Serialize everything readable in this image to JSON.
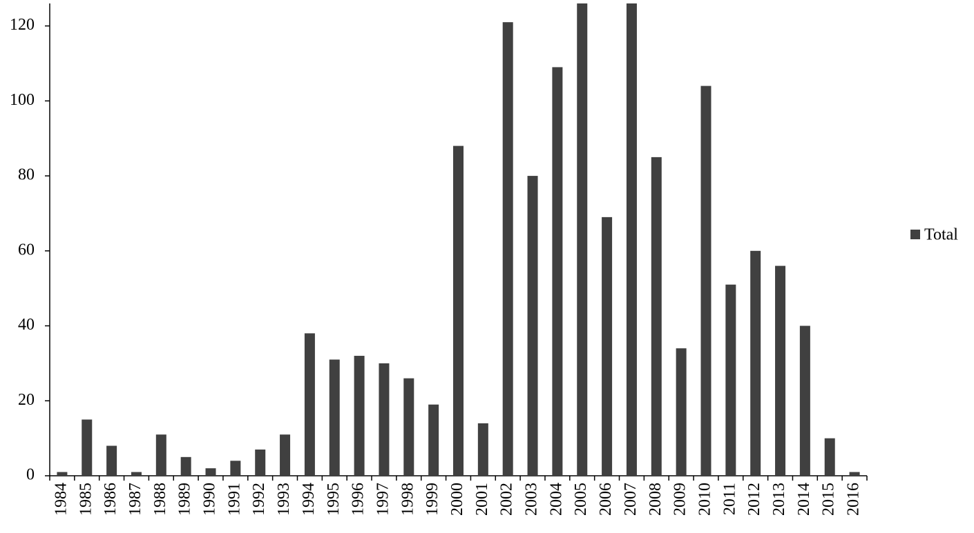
{
  "chart_data": {
    "type": "bar",
    "categories": [
      "1984",
      "1985",
      "1986",
      "1987",
      "1988",
      "1989",
      "1990",
      "1991",
      "1992",
      "1993",
      "1994",
      "1995",
      "1996",
      "1997",
      "1998",
      "1999",
      "2000",
      "2001",
      "2002",
      "2003",
      "2004",
      "2005",
      "2006",
      "2007",
      "2008",
      "2009",
      "2010",
      "2011",
      "2012",
      "2013",
      "2014",
      "2015",
      "2016"
    ],
    "series": [
      {
        "name": "Total",
        "color": "#404040",
        "values": [
          1,
          15,
          8,
          1,
          11,
          5,
          2,
          4,
          7,
          11,
          38,
          31,
          32,
          30,
          26,
          19,
          88,
          14,
          121,
          80,
          109,
          126,
          69,
          126,
          85,
          34,
          104,
          51,
          60,
          56,
          40,
          10,
          1
        ]
      }
    ],
    "ylim": [
      0,
      126
    ],
    "yticks": [
      0,
      20,
      40,
      60,
      80,
      100,
      120
    ],
    "grid": false,
    "legend": "right"
  }
}
